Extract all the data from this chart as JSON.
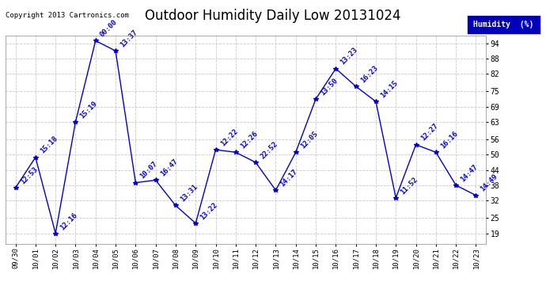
{
  "title": "Outdoor Humidity Daily Low 20131024",
  "copyright": "Copyright 2013 Cartronics.com",
  "legend_label": "Humidity  (%)",
  "x_labels": [
    "09/30",
    "10/01",
    "10/02",
    "10/03",
    "10/04",
    "10/05",
    "10/06",
    "10/07",
    "10/08",
    "10/09",
    "10/10",
    "10/11",
    "10/12",
    "10/13",
    "10/14",
    "10/15",
    "10/16",
    "10/17",
    "10/18",
    "10/19",
    "10/20",
    "10/21",
    "10/22",
    "10/23"
  ],
  "y_values": [
    37,
    49,
    19,
    63,
    95,
    91,
    39,
    40,
    30,
    23,
    52,
    51,
    47,
    36,
    51,
    72,
    84,
    77,
    71,
    33,
    54,
    51,
    38,
    34
  ],
  "point_labels": [
    "12:53",
    "15:18",
    "12:16",
    "15:19",
    "00:00",
    "13:37",
    "10:07",
    "16:47",
    "13:31",
    "13:22",
    "12:22",
    "12:26",
    "22:52",
    "14:17",
    "12:05",
    "13:50",
    "13:23",
    "16:23",
    "14:15",
    "11:52",
    "12:27",
    "16:16",
    "14:47",
    "14:49"
  ],
  "line_color": "#0000cc",
  "marker_color": "#0000cc",
  "label_color": "#0000cc",
  "bg_color": "#ffffff",
  "grid_color": "#bbbbbb",
  "legend_bg": "#0000bb",
  "legend_fg": "#ffffff",
  "y_ticks": [
    19,
    25,
    32,
    38,
    44,
    50,
    56,
    63,
    69,
    75,
    82,
    88,
    94
  ],
  "ylim": [
    15,
    97
  ],
  "title_fontsize": 12,
  "label_fontsize": 6.5,
  "copyright_fontsize": 6.5
}
